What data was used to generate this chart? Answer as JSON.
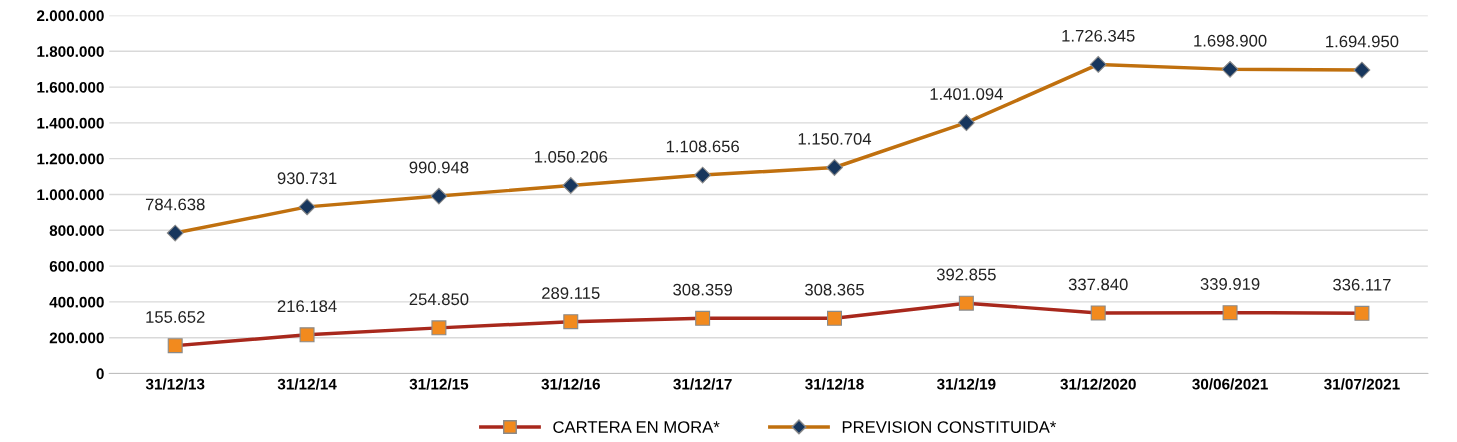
{
  "chart_data": {
    "type": "line",
    "categories": [
      "31/12/13",
      "31/12/14",
      "31/12/15",
      "31/12/16",
      "31/12/17",
      "31/12/18",
      "31/12/19",
      "31/12/2020",
      "30/06/2021",
      "31/07/2021"
    ],
    "series": [
      {
        "name": "CARTERA EN MORA*",
        "color": "#a8281c",
        "marker": "square",
        "colors": [
          "#f28a1e",
          "#f28a1e",
          "#f28a1e",
          "#f28a1e",
          "#f28a1e",
          "#f28a1e",
          "#f28a1e",
          "#f28a1e",
          "#f28a1e",
          "#f28a1e"
        ],
        "values": [
          155652,
          216184,
          254850,
          289115,
          308359,
          308365,
          392855,
          337840,
          339919,
          336117
        ],
        "value_labels": [
          "155.652",
          "216.184",
          "254.850",
          "289.115",
          "308.359",
          "308.365",
          "392.855",
          "337.840",
          "339.919",
          "336.117"
        ]
      },
      {
        "name": "PREVISION CONSTITUIDA*",
        "color": "#c0700e",
        "marker": "diamond",
        "colors": [
          "#17365d",
          "#17365d",
          "#17365d",
          "#17365d",
          "#17365d",
          "#17365d",
          "#17365d",
          "#17365d",
          "#17365d",
          "#17365d"
        ],
        "values": [
          784638,
          930731,
          990948,
          1050206,
          1108656,
          1150704,
          1401094,
          1726345,
          1698900,
          1694950
        ],
        "value_labels": [
          "784.638",
          "930.731",
          "990.948",
          "1.050.206",
          "1.108.656",
          "1.150.704",
          "1.401.094",
          "1.726.345",
          "1.698.900",
          "1.694.950"
        ]
      }
    ],
    "ylim": [
      0,
      2000000
    ],
    "yticks": [
      0,
      {
        "value": 200000,
        "label": "200.000"
      },
      {
        "value": 400000,
        "label": "400.000"
      },
      {
        "value": 600000,
        "label": "600.000"
      },
      {
        "value": 800000,
        "label": "800.000"
      },
      {
        "value": 1000000,
        "label": "1.000.000"
      },
      {
        "value": 1200000,
        "label": "1.200.000"
      },
      {
        "value": 1400000,
        "label": "1.400.000"
      },
      {
        "value": 1600000,
        "label": "1.600.000"
      },
      {
        "value": 1800000,
        "label": "1.800.000"
      },
      {
        "value": 2000000,
        "label": "2.000.000"
      }
    ],
    "grid": "y",
    "legend": "bottom",
    "line_style": "solid"
  }
}
